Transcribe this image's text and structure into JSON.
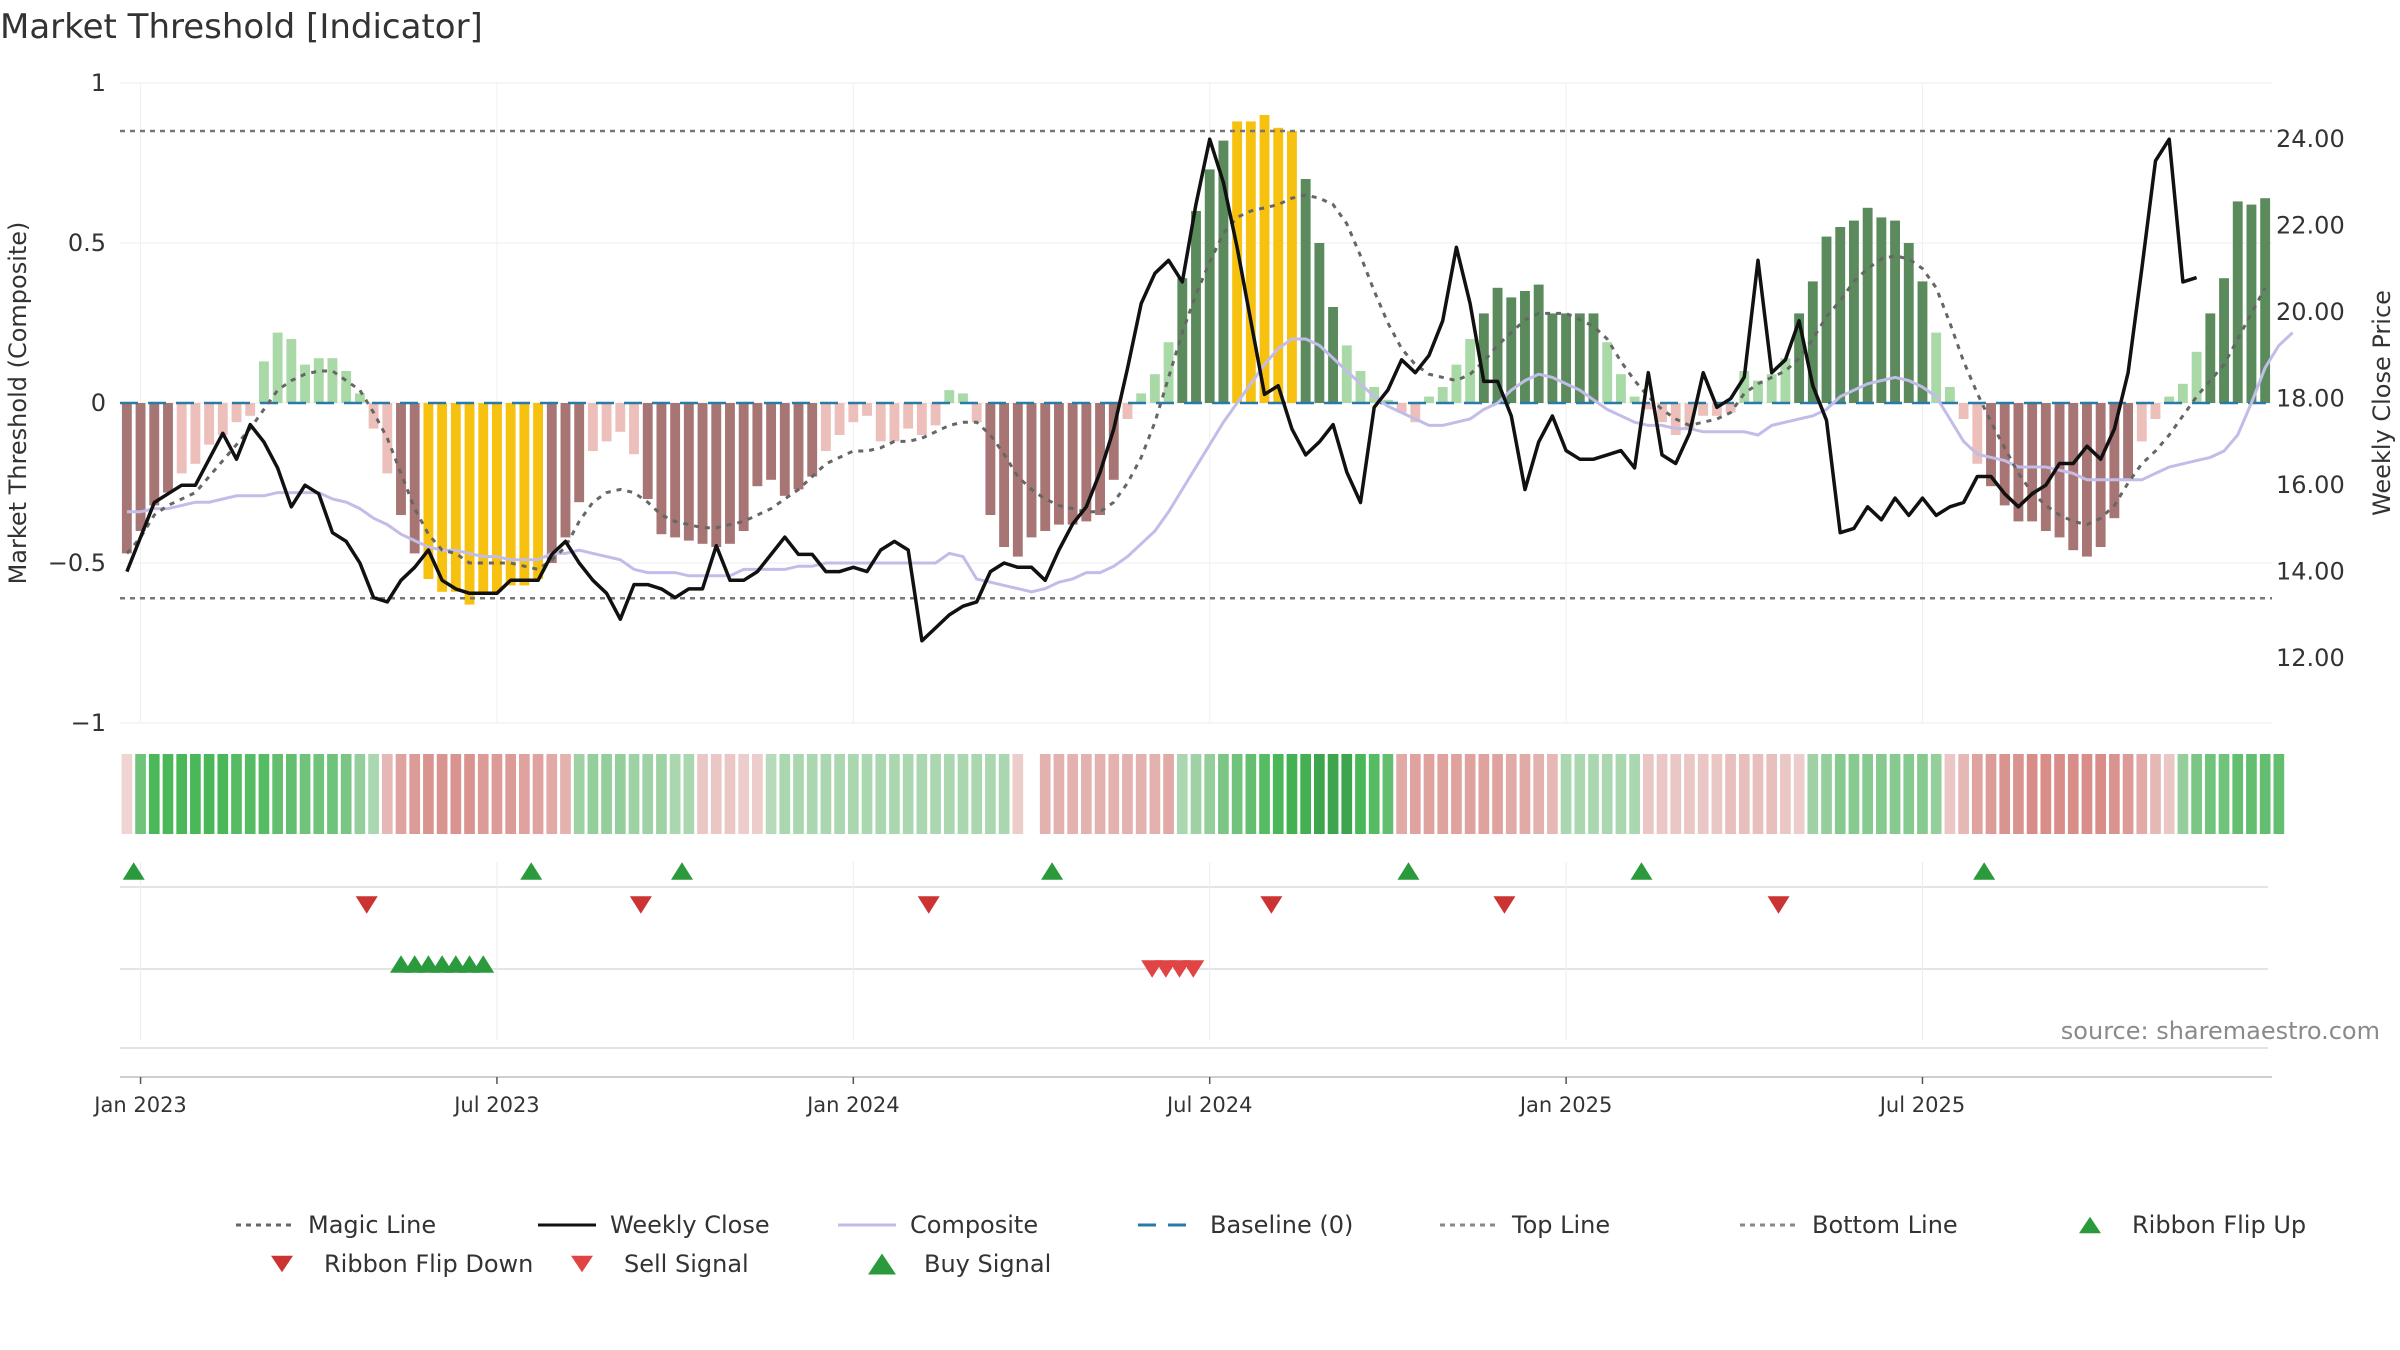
{
  "chart_data": {
    "type": "bar",
    "title": "Market Threshold [Indicator]",
    "ylabel": "Market Threshold (Composite)",
    "y2label": "Weekly Close Price",
    "ylim": [
      -1,
      1
    ],
    "y2lim": [
      10.5,
      25.3
    ],
    "yticks": [
      {
        "value": 1,
        "label": "1"
      },
      {
        "value": 0.5,
        "label": "0.5"
      },
      {
        "value": 0,
        "label": "0"
      },
      {
        "value": -0.5,
        "label": "−0.5"
      },
      {
        "value": -1,
        "label": "−1"
      }
    ],
    "y2ticks": [
      {
        "value": 24,
        "label": "24.00"
      },
      {
        "value": 22,
        "label": "22.00"
      },
      {
        "value": 20,
        "label": "20.00"
      },
      {
        "value": 18,
        "label": "18.00"
      },
      {
        "value": 16,
        "label": "16.00"
      },
      {
        "value": 14,
        "label": "14.00"
      },
      {
        "value": 12,
        "label": "12.00"
      }
    ],
    "xticks": [
      {
        "week": 1.5,
        "label": "Jan 2023"
      },
      {
        "week": 27.5,
        "label": "Jul 2023"
      },
      {
        "week": 53.5,
        "label": "Jan 2024"
      },
      {
        "week": 79.5,
        "label": "Jul 2024"
      },
      {
        "week": 105.5,
        "label": "Jan 2025"
      },
      {
        "week": 131.5,
        "label": "Jul 2025"
      }
    ],
    "top_line": 0.85,
    "bottom_line": -0.61,
    "baseline": 0,
    "grid": true,
    "legend_position": "bottom",
    "source": "source: sharemaestro.com",
    "composite_bars": [
      -0.47,
      -0.4,
      -0.32,
      -0.28,
      -0.22,
      -0.19,
      -0.13,
      -0.1,
      -0.06,
      -0.04,
      0.13,
      0.22,
      0.2,
      0.12,
      0.14,
      0.14,
      0.1,
      0.03,
      -0.08,
      -0.22,
      -0.35,
      -0.47,
      -0.55,
      -0.59,
      -0.59,
      -0.63,
      -0.6,
      -0.59,
      -0.57,
      -0.57,
      -0.55,
      -0.5,
      -0.42,
      -0.31,
      -0.15,
      -0.12,
      -0.09,
      -0.16,
      -0.3,
      -0.41,
      -0.42,
      -0.43,
      -0.44,
      -0.45,
      -0.44,
      -0.4,
      -0.26,
      -0.24,
      -0.29,
      -0.27,
      -0.23,
      -0.15,
      -0.1,
      -0.06,
      -0.04,
      -0.12,
      -0.12,
      -0.08,
      -0.1,
      -0.07,
      0.04,
      0.03,
      -0.06,
      -0.35,
      -0.45,
      -0.48,
      -0.42,
      -0.4,
      -0.38,
      -0.38,
      -0.37,
      -0.35,
      -0.24,
      -0.05,
      0.03,
      0.09,
      0.19,
      0.39,
      0.6,
      0.73,
      0.82,
      0.88,
      0.88,
      0.9,
      0.86,
      0.85,
      0.7,
      0.5,
      0.3,
      0.18,
      0.1,
      0.05,
      0.01,
      -0.03,
      -0.06,
      0.02,
      0.05,
      0.12,
      0.2,
      0.28,
      0.36,
      0.33,
      0.35,
      0.37,
      0.28,
      0.28,
      0.28,
      0.28,
      0.19,
      0.09,
      0.02,
      -0.02,
      -0.06,
      -0.1,
      -0.08,
      -0.04,
      -0.04,
      -0.03,
      0.1,
      0.07,
      0.09,
      0.14,
      0.28,
      0.38,
      0.52,
      0.55,
      0.57,
      0.61,
      0.58,
      0.57,
      0.5,
      0.38,
      0.22,
      0.05,
      -0.05,
      -0.19,
      -0.26,
      -0.32,
      -0.37,
      -0.37,
      -0.4,
      -0.42,
      -0.46,
      -0.48,
      -0.45,
      -0.36,
      -0.24,
      -0.12,
      -0.05,
      0.02,
      0.06,
      0.16,
      0.28,
      0.39,
      0.63,
      0.62,
      0.64
    ],
    "weekly_close": [
      14.0,
      14.8,
      15.6,
      15.8,
      16.0,
      16.0,
      16.6,
      17.2,
      16.6,
      17.4,
      17.0,
      16.4,
      15.5,
      16.0,
      15.8,
      14.9,
      14.7,
      14.2,
      13.4,
      13.3,
      13.8,
      14.1,
      14.5,
      13.8,
      13.6,
      13.5,
      13.5,
      13.5,
      13.8,
      13.8,
      13.8,
      14.4,
      14.7,
      14.2,
      13.8,
      13.5,
      12.9,
      13.7,
      13.7,
      13.6,
      13.4,
      13.6,
      13.6,
      14.6,
      13.8,
      13.8,
      14.0,
      14.4,
      14.8,
      14.4,
      14.4,
      14.0,
      14.0,
      14.1,
      14.0,
      14.5,
      14.7,
      14.5,
      12.4,
      12.7,
      13.0,
      13.2,
      13.3,
      14.0,
      14.2,
      14.1,
      14.1,
      13.8,
      14.5,
      15.1,
      15.5,
      16.3,
      17.3,
      18.7,
      20.2,
      20.9,
      21.2,
      20.7,
      22.5,
      24.0,
      23.0,
      21.5,
      19.8,
      18.1,
      18.3,
      17.3,
      16.7,
      17.0,
      17.4,
      16.3,
      15.6,
      17.8,
      18.2,
      18.9,
      18.6,
      19.0,
      19.8,
      21.5,
      20.2,
      18.4,
      18.4,
      17.6,
      15.9,
      17.0,
      17.6,
      16.8,
      16.6,
      16.6,
      16.7,
      16.8,
      16.4,
      18.6,
      16.7,
      16.5,
      17.2,
      18.6,
      17.8,
      18.0,
      18.5,
      21.2,
      18.6,
      18.9,
      19.8,
      18.3,
      17.5,
      14.9,
      15.0,
      15.5,
      15.2,
      15.7,
      15.3,
      15.7,
      15.3,
      15.5,
      15.6,
      16.2,
      16.2,
      15.8,
      15.5,
      15.8,
      16.0,
      16.5,
      16.5,
      16.9,
      16.6,
      17.3,
      18.6,
      21.0,
      23.5,
      24.0,
      20.7,
      20.8
    ],
    "magic_line": [
      -0.47,
      -0.42,
      -0.35,
      -0.32,
      -0.3,
      -0.28,
      -0.23,
      -0.18,
      -0.13,
      -0.08,
      -0.02,
      0.04,
      0.07,
      0.09,
      0.1,
      0.1,
      0.07,
      0.04,
      -0.03,
      -0.11,
      -0.22,
      -0.33,
      -0.41,
      -0.46,
      -0.47,
      -0.5,
      -0.5,
      -0.5,
      -0.5,
      -0.51,
      -0.52,
      -0.49,
      -0.45,
      -0.37,
      -0.31,
      -0.28,
      -0.27,
      -0.28,
      -0.31,
      -0.35,
      -0.37,
      -0.38,
      -0.39,
      -0.39,
      -0.38,
      -0.37,
      -0.35,
      -0.33,
      -0.3,
      -0.27,
      -0.23,
      -0.19,
      -0.17,
      -0.15,
      -0.15,
      -0.14,
      -0.12,
      -0.12,
      -0.11,
      -0.09,
      -0.07,
      -0.06,
      -0.06,
      -0.1,
      -0.16,
      -0.23,
      -0.27,
      -0.3,
      -0.32,
      -0.33,
      -0.34,
      -0.34,
      -0.31,
      -0.25,
      -0.17,
      -0.06,
      0.08,
      0.22,
      0.34,
      0.44,
      0.53,
      0.58,
      0.6,
      0.61,
      0.62,
      0.64,
      0.65,
      0.64,
      0.62,
      0.56,
      0.46,
      0.35,
      0.25,
      0.17,
      0.12,
      0.09,
      0.08,
      0.07,
      0.09,
      0.13,
      0.18,
      0.22,
      0.26,
      0.28,
      0.28,
      0.28,
      0.26,
      0.24,
      0.2,
      0.13,
      0.07,
      0.02,
      -0.02,
      -0.05,
      -0.07,
      -0.06,
      -0.05,
      -0.03,
      0.03,
      0.06,
      0.08,
      0.1,
      0.14,
      0.2,
      0.27,
      0.32,
      0.38,
      0.42,
      0.45,
      0.46,
      0.45,
      0.42,
      0.36,
      0.25,
      0.13,
      0.03,
      -0.06,
      -0.14,
      -0.22,
      -0.28,
      -0.32,
      -0.35,
      -0.37,
      -0.38,
      -0.36,
      -0.32,
      -0.25,
      -0.19,
      -0.15,
      -0.1,
      -0.04,
      0.02,
      0.07,
      0.12,
      0.2,
      0.28,
      0.36
    ],
    "composite_line": [
      -0.34,
      -0.34,
      -0.33,
      -0.33,
      -0.32,
      -0.31,
      -0.31,
      -0.3,
      -0.29,
      -0.29,
      -0.29,
      -0.28,
      -0.28,
      -0.28,
      -0.28,
      -0.3,
      -0.31,
      -0.33,
      -0.36,
      -0.38,
      -0.41,
      -0.43,
      -0.45,
      -0.46,
      -0.46,
      -0.47,
      -0.48,
      -0.48,
      -0.49,
      -0.49,
      -0.49,
      -0.47,
      -0.47,
      -0.46,
      -0.47,
      -0.48,
      -0.49,
      -0.52,
      -0.53,
      -0.53,
      -0.53,
      -0.54,
      -0.54,
      -0.54,
      -0.54,
      -0.52,
      -0.52,
      -0.52,
      -0.52,
      -0.51,
      -0.51,
      -0.5,
      -0.5,
      -0.5,
      -0.5,
      -0.5,
      -0.5,
      -0.5,
      -0.5,
      -0.5,
      -0.47,
      -0.48,
      -0.55,
      -0.56,
      -0.57,
      -0.58,
      -0.59,
      -0.58,
      -0.56,
      -0.55,
      -0.53,
      -0.53,
      -0.51,
      -0.48,
      -0.44,
      -0.4,
      -0.34,
      -0.27,
      -0.2,
      -0.13,
      -0.06,
      0.0,
      0.06,
      0.12,
      0.17,
      0.2,
      0.2,
      0.18,
      0.14,
      0.1,
      0.06,
      0.02,
      -0.01,
      -0.03,
      -0.05,
      -0.07,
      -0.07,
      -0.06,
      -0.05,
      -0.02,
      0.0,
      0.04,
      0.07,
      0.09,
      0.08,
      0.06,
      0.04,
      0.01,
      -0.02,
      -0.04,
      -0.06,
      -0.07,
      -0.07,
      -0.08,
      -0.08,
      -0.09,
      -0.09,
      -0.09,
      -0.09,
      -0.1,
      -0.07,
      -0.06,
      -0.05,
      -0.04,
      -0.02,
      0.02,
      0.04,
      0.06,
      0.07,
      0.08,
      0.07,
      0.05,
      0.02,
      -0.05,
      -0.12,
      -0.16,
      -0.17,
      -0.18,
      -0.2,
      -0.2,
      -0.2,
      -0.21,
      -0.22,
      -0.24,
      -0.24,
      -0.24,
      -0.24,
      -0.24,
      -0.22,
      -0.2,
      -0.19,
      -0.18,
      -0.17,
      -0.15,
      -0.1,
      0.0,
      0.11,
      0.18,
      0.22
    ],
    "ribbon_levels": [
      -0.1,
      0.55,
      0.7,
      0.7,
      0.7,
      0.7,
      0.7,
      0.7,
      0.65,
      0.65,
      0.65,
      0.6,
      0.6,
      0.55,
      0.55,
      0.55,
      0.5,
      0.4,
      0.3,
      -0.3,
      -0.45,
      -0.5,
      -0.55,
      -0.55,
      -0.55,
      -0.55,
      -0.5,
      -0.5,
      -0.5,
      -0.45,
      -0.45,
      -0.4,
      -0.35,
      0.35,
      0.4,
      0.4,
      0.4,
      0.35,
      0.35,
      0.35,
      0.3,
      0.3,
      -0.2,
      -0.2,
      -0.2,
      -0.15,
      -0.15,
      0.25,
      0.3,
      0.3,
      0.3,
      0.3,
      0.3,
      0.3,
      0.3,
      0.3,
      0.3,
      0.3,
      0.3,
      0.3,
      0.3,
      0.3,
      0.3,
      0.3,
      0.3,
      -0.15,
      0,
      -0.35,
      -0.35,
      -0.35,
      -0.35,
      -0.35,
      -0.35,
      -0.35,
      -0.35,
      -0.35,
      -0.4,
      0.3,
      0.35,
      0.4,
      0.5,
      0.55,
      0.6,
      0.65,
      0.7,
      0.75,
      0.75,
      0.8,
      0.8,
      0.8,
      0.7,
      0.65,
      0.6,
      -0.4,
      -0.45,
      -0.45,
      -0.45,
      -0.45,
      -0.45,
      -0.45,
      -0.45,
      -0.4,
      -0.4,
      -0.35,
      -0.3,
      0.3,
      0.3,
      0.3,
      0.3,
      0.3,
      0.3,
      -0.2,
      -0.2,
      -0.2,
      -0.2,
      -0.2,
      -0.2,
      -0.25,
      -0.25,
      -0.25,
      -0.25,
      -0.2,
      -0.15,
      0.35,
      0.4,
      0.45,
      0.45,
      0.45,
      0.45,
      0.45,
      0.45,
      0.45,
      0.4,
      -0.2,
      -0.3,
      -0.45,
      -0.5,
      -0.55,
      -0.55,
      -0.6,
      -0.6,
      -0.6,
      -0.6,
      -0.6,
      -0.6,
      -0.55,
      -0.5,
      -0.4,
      -0.3,
      -0.2,
      0.4,
      0.5,
      0.55,
      0.55,
      0.6,
      0.6,
      0.6,
      0.6
    ],
    "ribbon_flip_up": [
      1,
      30,
      41,
      68,
      94,
      111,
      136
    ],
    "ribbon_flip_down": [
      18,
      38,
      59,
      84,
      101,
      121
    ],
    "buy_signal": [
      20.5,
      21.5,
      22.5,
      23.5,
      24.5,
      25.5,
      26.5
    ],
    "sell_signal": [
      75.3,
      76.3,
      77.3,
      78.3
    ],
    "legend": [
      {
        "label": "Magic Line",
        "type": "dotted",
        "color": "#666666"
      },
      {
        "label": "Weekly Close",
        "type": "solid",
        "color": "#111111"
      },
      {
        "label": "Composite",
        "type": "solid",
        "color": "#c2bde8"
      },
      {
        "label": "Baseline (0)",
        "type": "dashed",
        "color": "#2a7aa7"
      },
      {
        "label": "Top Line",
        "type": "dotted",
        "color": "#888888"
      },
      {
        "label": "Bottom Line",
        "type": "dotted",
        "color": "#888888"
      },
      {
        "label": "Ribbon Flip Up",
        "type": "tri-up",
        "color": "#2a9a3d"
      },
      {
        "label": "Ribbon Flip Down",
        "type": "tri-down",
        "color": "#cc3333"
      },
      {
        "label": "Sell Signal",
        "type": "tri-down",
        "color": "#e04444"
      },
      {
        "label": "Buy Signal",
        "type": "tri-up",
        "color": "#2a9a3d"
      }
    ],
    "colors": {
      "extreme": "#f7c10f",
      "pos_strong": "#5b8b5c",
      "pos_weak": "#aad9a8",
      "neg_strong": "#a77574",
      "neg_weak": "#edbfbb",
      "close": "#111111",
      "magic": "#666666",
      "composite": "#c2bde8",
      "baseline": "#2a7aa7",
      "buy": "#2a9a3d",
      "sell": "#e04444",
      "flip_up": "#2a9a3d",
      "flip_down": "#cc3333"
    }
  }
}
